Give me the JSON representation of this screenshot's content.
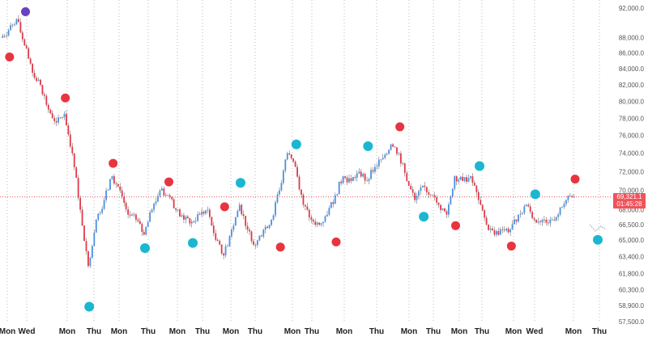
{
  "chart_data": {
    "type": "candlestick",
    "y_scale": "log",
    "ylim": [
      57500,
      92000
    ],
    "y_ticks": [
      "92,000.0",
      "88,000.0",
      "86,000.0",
      "84,000.0",
      "82,000.0",
      "80,000.0",
      "78,000.0",
      "76,000.0",
      "74,000.0",
      "72,000.0",
      "70,000.0",
      "68,000.0",
      "66,500.0",
      "65,000.0",
      "63,400.0",
      "61,800.0",
      "60,300.0",
      "58,900.0",
      "57,500.0"
    ],
    "y_tick_values": [
      92000,
      88000,
      86000,
      84000,
      82000,
      80000,
      78000,
      76000,
      74000,
      72000,
      70000,
      68000,
      66500,
      65000,
      63400,
      61800,
      60300,
      58900,
      57500
    ],
    "x_ticks": [
      "Mon",
      "Wed",
      "Mon",
      "Thu",
      "Mon",
      "Thu",
      "Mon",
      "Thu",
      "Mon",
      "Thu",
      "Mon",
      "Thu",
      "Mon",
      "Thu",
      "Mon",
      "Thu",
      "Mon",
      "Thu",
      "Mon",
      "Wed",
      "Mon",
      "Thu"
    ],
    "grid": "vertical dotted at day ticks",
    "closes": [
      88000,
      89000,
      90500,
      87000,
      83500,
      82000,
      79000,
      77500,
      78500,
      74000,
      68000,
      62500,
      67000,
      69000,
      71500,
      70000,
      67500,
      67000,
      65500,
      68000,
      70000,
      69500,
      68000,
      67000,
      66800,
      67500,
      68000,
      65000,
      63500,
      66000,
      68500,
      66000,
      64500,
      66000,
      67000,
      70000,
      74000,
      72500,
      68500,
      67000,
      66500,
      67500,
      69500,
      71500,
      71000,
      72000,
      71000,
      72500,
      73500,
      75000,
      74000,
      71000,
      69000,
      70500,
      69500,
      68500,
      67500,
      71500,
      71000,
      71500,
      69000,
      66500,
      65500,
      66000,
      66000,
      67500,
      68500,
      67000,
      67000,
      67000,
      67500,
      69000,
      69321.1
    ],
    "up_color": "#4a90e2",
    "down_color": "#e0394a",
    "markers": [
      {
        "index": 3,
        "price": 91500,
        "color": "#6a3fc0"
      },
      {
        "index": 1,
        "price": 85500,
        "color": "#e8343f"
      },
      {
        "index": 8,
        "price": 80400,
        "color": "#e8343f"
      },
      {
        "index": 11,
        "price": 58800,
        "color": "#1bb7d0"
      },
      {
        "index": 14,
        "price": 72900,
        "color": "#e8343f"
      },
      {
        "index": 18,
        "price": 64200,
        "color": "#1bb7d0"
      },
      {
        "index": 21,
        "price": 70900,
        "color": "#e8343f"
      },
      {
        "index": 24,
        "price": 64700,
        "color": "#1bb7d0"
      },
      {
        "index": 28,
        "price": 68300,
        "color": "#e8343f"
      },
      {
        "index": 30,
        "price": 70800,
        "color": "#1bb7d0"
      },
      {
        "index": 35,
        "price": 64300,
        "color": "#e8343f"
      },
      {
        "index": 37,
        "price": 75000,
        "color": "#1bb7d0"
      },
      {
        "index": 42,
        "price": 64800,
        "color": "#e8343f"
      },
      {
        "index": 46,
        "price": 74800,
        "color": "#1bb7d0"
      },
      {
        "index": 50,
        "price": 77000,
        "color": "#e8343f"
      },
      {
        "index": 53,
        "price": 67300,
        "color": "#1bb7d0"
      },
      {
        "index": 57,
        "price": 66400,
        "color": "#e8343f"
      },
      {
        "index": 60,
        "price": 72600,
        "color": "#1bb7d0"
      },
      {
        "index": 64,
        "price": 64400,
        "color": "#e8343f"
      },
      {
        "index": 67,
        "price": 69600,
        "color": "#1bb7d0"
      },
      {
        "index": 72,
        "price": 71200,
        "color": "#e8343f"
      },
      {
        "index": 75,
        "price": 65000,
        "color": "#1bb7d0"
      }
    ]
  },
  "price_label": {
    "price": "69,321.1",
    "countdown": "01:45:28",
    "color": "#f0535a"
  }
}
